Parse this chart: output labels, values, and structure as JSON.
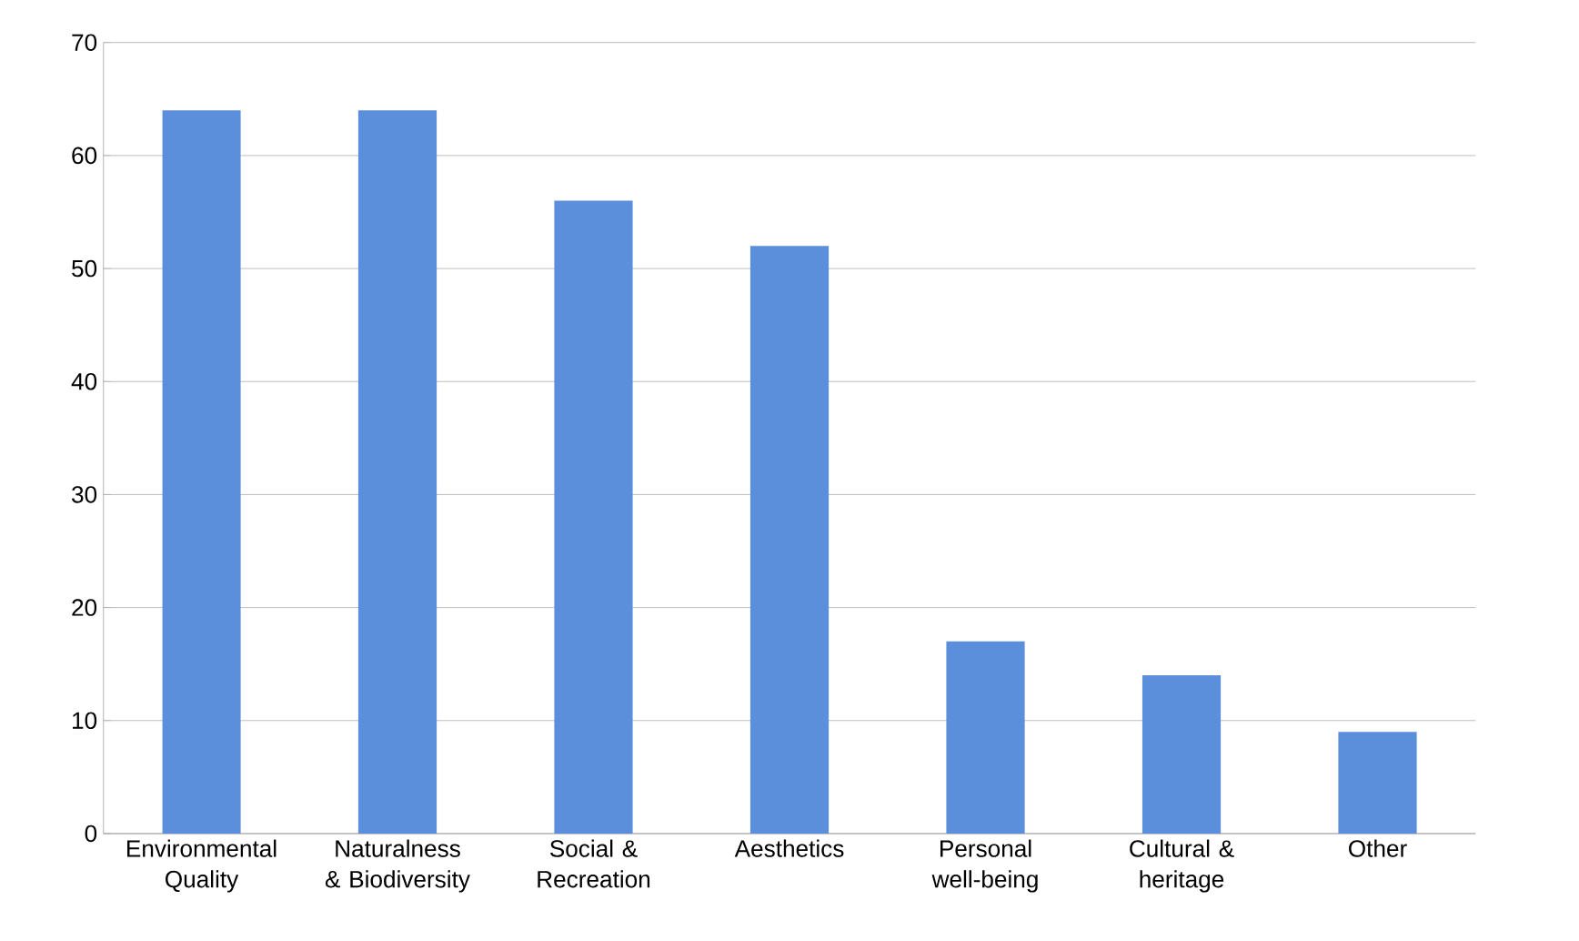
{
  "chart_data": {
    "type": "bar",
    "categories": [
      "Environmental Quality",
      "Naturalness & Biodiversity",
      "Social & Recreation",
      "Aesthetics",
      "Personal well-being",
      "Cultural & heritage",
      "Other"
    ],
    "values": [
      64,
      64,
      56,
      52,
      17,
      14,
      9
    ],
    "color": "#5b8fdb",
    "ylim": [
      0,
      70
    ],
    "yticks": [
      0,
      10,
      20,
      30,
      40,
      50,
      60,
      70
    ],
    "grid": "y"
  }
}
